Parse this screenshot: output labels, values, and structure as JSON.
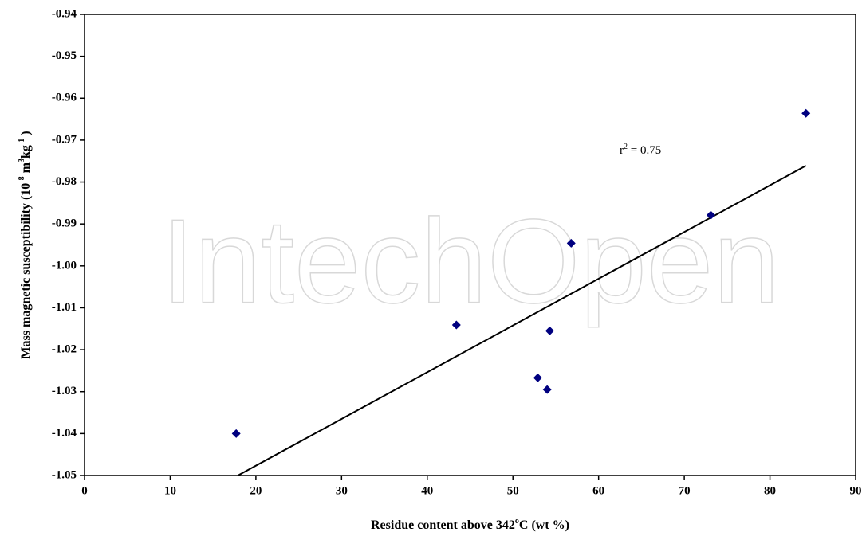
{
  "chart_data": {
    "type": "scatter",
    "watermark": "IntechOpen",
    "x_label": [
      {
        "text": "Residue content above 342"
      },
      {
        "text": "o",
        "sup": true
      },
      {
        "text": "C (wt %)"
      }
    ],
    "y_label": [
      {
        "text": "Mass magnetic susceptibility (10"
      },
      {
        "text": "-8",
        "sup": true
      },
      {
        "text": " m"
      },
      {
        "text": "3",
        "sup": true
      },
      {
        "text": "kg"
      },
      {
        "text": "-1",
        "sup": true
      },
      {
        "text": " )"
      }
    ],
    "annotation": [
      {
        "text": "r"
      },
      {
        "text": "2",
        "sup": true
      },
      {
        "text": " = 0.75"
      }
    ],
    "xlim": [
      0,
      90
    ],
    "xticks": [
      0,
      10,
      20,
      30,
      40,
      50,
      60,
      70,
      80,
      90
    ],
    "ylim": [
      -1.05,
      -0.94
    ],
    "yticks": [
      -0.94,
      -0.95,
      -0.96,
      -0.97,
      -0.98,
      -0.99,
      {
        "value": -1.0,
        "label": "-1.00"
      },
      -1.01,
      -1.02,
      -1.03,
      -1.04,
      -1.05
    ],
    "series": [
      {
        "color": "#000080",
        "x": [
          17.7,
          43.4,
          52.9,
          54.0,
          54.3,
          56.8,
          73.1,
          84.2
        ],
        "values": [
          -1.04,
          -1.0141,
          -1.0267,
          -1.0295,
          -1.0155,
          -0.9946,
          -0.9879,
          -0.9636
        ]
      }
    ],
    "trendline": {
      "color": "#000000",
      "x": [
        17.9,
        84.2
      ],
      "values": [
        -1.05,
        -0.9761
      ]
    }
  }
}
